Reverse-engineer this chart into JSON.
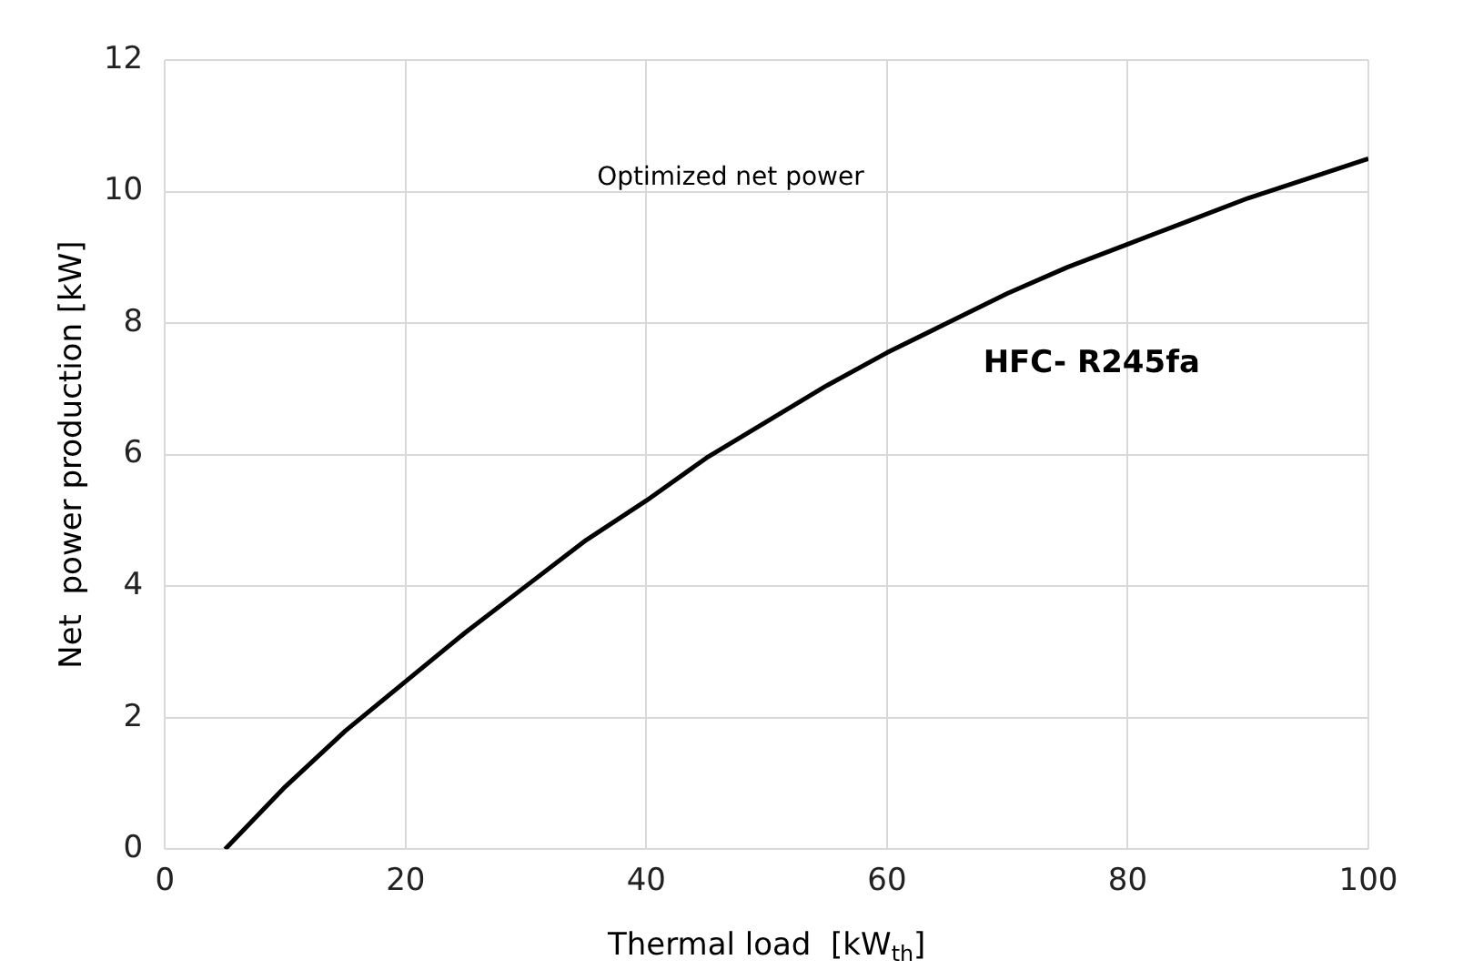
{
  "chart_data": {
    "type": "line",
    "title": "Optimized net power",
    "xlabel": "Thermal load  [kW$_{th}$]",
    "ylabel": "Net  power production [kW]",
    "x": [
      5,
      10,
      15,
      20,
      25,
      30,
      35,
      40,
      45,
      50,
      55,
      60,
      65,
      70,
      75,
      80,
      85,
      90,
      95,
      100
    ],
    "series": [
      {
        "name": "HFC- R245fa",
        "color": "#000000",
        "values": [
          0,
          0.95,
          1.8,
          2.55,
          3.3,
          4.0,
          4.7,
          5.3,
          5.95,
          6.5,
          7.05,
          7.55,
          8.0,
          8.45,
          8.85,
          9.2,
          9.55,
          9.9,
          10.2,
          10.5
        ]
      }
    ],
    "xlim": [
      0,
      100
    ],
    "xticks": [
      0,
      20,
      40,
      60,
      80,
      100
    ],
    "ylim": [
      0,
      12
    ],
    "yticks": [
      0,
      2,
      4,
      6,
      8,
      10,
      12
    ],
    "grid": true,
    "legend": false,
    "marker": "none",
    "line_style": "solid"
  }
}
